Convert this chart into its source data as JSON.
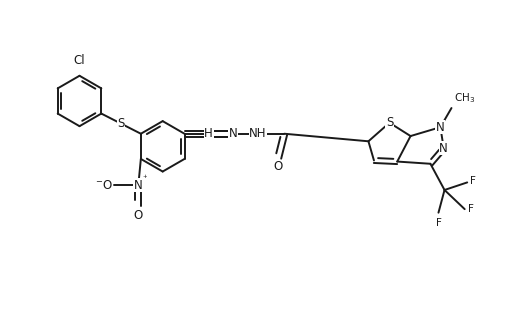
{
  "bg_color": "#ffffff",
  "line_color": "#1a1a1a",
  "line_width": 1.4,
  "font_size": 8.5,
  "fig_width": 5.32,
  "fig_height": 3.34,
  "dpi": 100,
  "xlim": [
    0,
    10.5
  ],
  "ylim": [
    0,
    6.28
  ]
}
